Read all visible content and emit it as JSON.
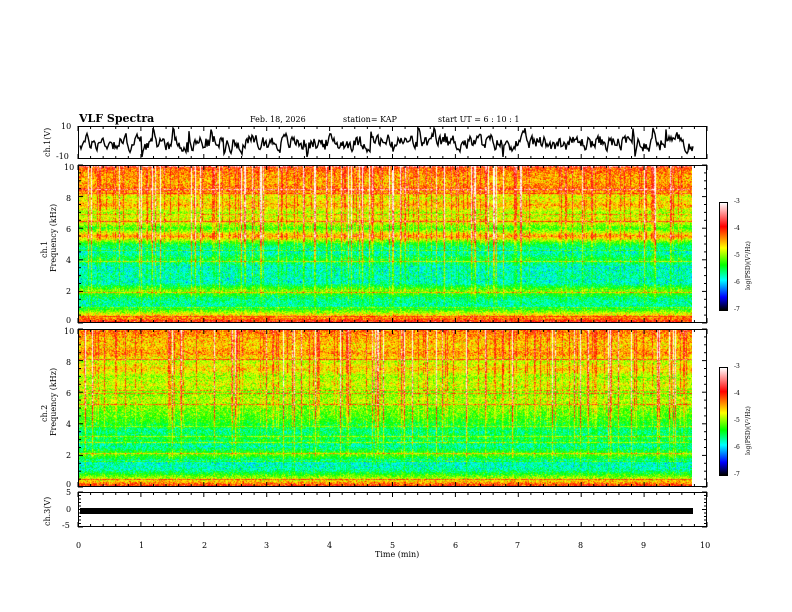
{
  "header": {
    "title": "VLF Spectra",
    "date": "Feb. 18, 2026",
    "station": "station= KAP",
    "start": "start  UT =   6  : 10 : 1"
  },
  "panels": {
    "wave1": {
      "ylabel": "ch.1(V)",
      "ymax_label": "10",
      "ymin_label": "-10"
    },
    "spec1": {
      "ylabel_line1": "ch.1",
      "ylabel_line2": "Frequency  (kHz)",
      "yticks": [
        "10",
        "8",
        "6",
        "4",
        "2",
        "0"
      ]
    },
    "spec2": {
      "ylabel_line1": "ch.2",
      "ylabel_line2": "Frequency  (kHz)",
      "yticks": [
        "10",
        "8",
        "6",
        "4",
        "2",
        "0"
      ]
    },
    "wave3": {
      "ylabel": "ch.3(V)",
      "yticks": [
        "5",
        "0",
        "-5"
      ]
    }
  },
  "colorbar": {
    "label": "log(PSD)(V²/Hz)",
    "ticks": [
      "-3",
      "-4",
      "-5",
      "-6",
      "-7"
    ]
  },
  "xaxis": {
    "label": "Time  (min)",
    "ticks": [
      "0",
      "1",
      "2",
      "3",
      "4",
      "5",
      "6",
      "7",
      "8",
      "9",
      "10"
    ]
  },
  "chart_data": {
    "type": "heatmap",
    "title": "VLF Spectra",
    "xlabel": "Time  (min)",
    "xlim": [
      0,
      10
    ],
    "data_extent_min": 9.8,
    "spectrogram_ylim_khz": [
      0,
      10
    ],
    "colorbar_range_log_psd": [
      -7,
      -3
    ],
    "ch1_waveform_ylim": [
      -10,
      10
    ],
    "ch3_waveform_ylim": [
      -5,
      5
    ],
    "ch3_level": 0,
    "spectral_profile_log_psd": {
      "freq_khz": [
        0,
        0.5,
        1.0,
        1.5,
        2.0,
        2.5,
        3.0,
        3.5,
        4.0,
        4.5,
        5.0,
        5.5,
        6.0,
        6.5,
        7.0,
        7.5,
        8.0,
        8.5,
        9.0,
        9.5,
        10.0
      ],
      "ch1": [
        -3.8,
        -4.6,
        -5.6,
        -5.5,
        -4.9,
        -5.7,
        -5.6,
        -5.7,
        -5.3,
        -5.7,
        -5.3,
        -4.2,
        -5.1,
        -4.5,
        -4.8,
        -4.3,
        -4.6,
        -4.1,
        -4.3,
        -4.2,
        -4.0
      ],
      "ch2": [
        -3.9,
        -4.8,
        -5.6,
        -5.7,
        -5.0,
        -5.6,
        -5.3,
        -5.5,
        -5.2,
        -5.0,
        -4.9,
        -4.7,
        -4.9,
        -4.6,
        -4.8,
        -4.4,
        -4.7,
        -4.2,
        -4.4,
        -4.3,
        -4.1
      ]
    }
  }
}
